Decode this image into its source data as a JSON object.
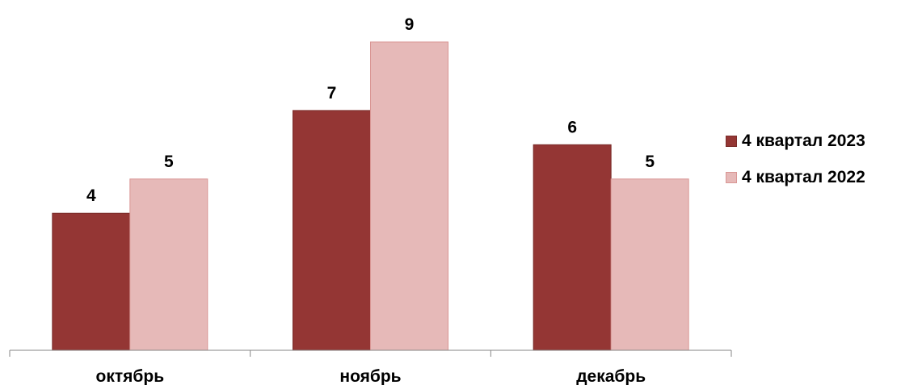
{
  "chart_data": {
    "type": "bar",
    "categories": [
      "октябрь",
      "ноябрь",
      "декабрь"
    ],
    "series": [
      {
        "name": "4 квартал 2023",
        "values": [
          4,
          7,
          6
        ],
        "color": "#943634",
        "stroke": "#7a2b29"
      },
      {
        "name": "4 квартал 2022",
        "values": [
          5,
          9,
          5
        ],
        "color": "#e6b9b8",
        "stroke": "#d99694"
      }
    ],
    "title": "",
    "xlabel": "",
    "ylabel": "",
    "ylim": [
      0,
      9
    ],
    "data_labels": true,
    "y_axis_visible": false,
    "grid": false,
    "legend_position": "right"
  }
}
